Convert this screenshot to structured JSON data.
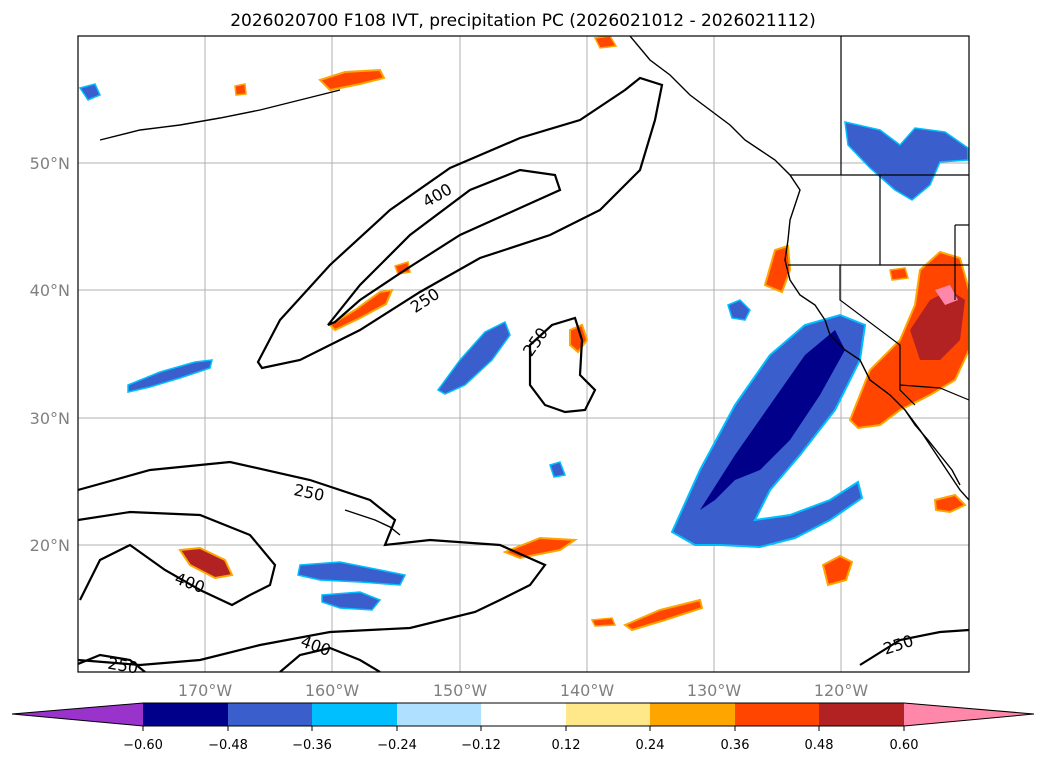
{
  "title": "2026020700 F108 IVT, precipitation PC (2026021012 - 2026021112)",
  "map": {
    "lon_range": [
      -180,
      -110
    ],
    "lat_range": [
      10,
      60
    ],
    "grid": true,
    "lat_labels": [
      "50°N",
      "40°N",
      "30°N",
      "20°N"
    ],
    "lon_labels": [
      "170°W",
      "160°W",
      "150°W",
      "140°W",
      "130°W",
      "120°W"
    ],
    "ivt_contour_labels": [
      "400",
      "250",
      "250",
      "250",
      "400",
      "400",
      "250",
      "250"
    ]
  },
  "colorbar": {
    "labels": [
      "−0.60",
      "−0.48",
      "−0.36",
      "−0.24",
      "−0.12",
      "0.12",
      "0.24",
      "0.36",
      "0.48",
      "0.60"
    ],
    "colors": [
      "#9933cc",
      "#00008b",
      "#3a5fcd",
      "#00bfff",
      "#b0e0ff",
      "#ffffff",
      "#ffe88a",
      "#ffa500",
      "#ff4500",
      "#b22222",
      "#ff88aa"
    ]
  }
}
